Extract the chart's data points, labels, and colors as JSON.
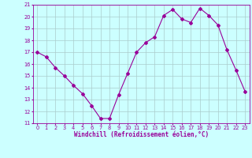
{
  "x": [
    0,
    1,
    2,
    3,
    4,
    5,
    6,
    7,
    8,
    9,
    10,
    11,
    12,
    13,
    14,
    15,
    16,
    17,
    18,
    19,
    20,
    21,
    22,
    23
  ],
  "y": [
    17.0,
    16.6,
    15.7,
    15.0,
    14.2,
    13.5,
    12.5,
    11.4,
    11.4,
    13.4,
    15.2,
    17.0,
    17.8,
    18.3,
    20.1,
    20.6,
    19.8,
    19.5,
    20.7,
    20.1,
    19.3,
    17.2,
    15.5,
    13.7
  ],
  "line_color": "#990099",
  "marker": "D",
  "marker_size": 2,
  "bg_color": "#ccffff",
  "grid_color": "#aacccc",
  "xlabel": "Windchill (Refroidissement éolien,°C)",
  "xlabel_color": "#990099",
  "tick_color": "#990099",
  "ylim": [
    11,
    21
  ],
  "xlim": [
    -0.5,
    23.5
  ],
  "yticks": [
    11,
    12,
    13,
    14,
    15,
    16,
    17,
    18,
    19,
    20,
    21
  ],
  "xticks": [
    0,
    1,
    2,
    3,
    4,
    5,
    6,
    7,
    8,
    9,
    10,
    11,
    12,
    13,
    14,
    15,
    16,
    17,
    18,
    19,
    20,
    21,
    22,
    23
  ],
  "label_fontsize": 5.5,
  "tick_fontsize": 4.8,
  "linewidth": 0.8
}
